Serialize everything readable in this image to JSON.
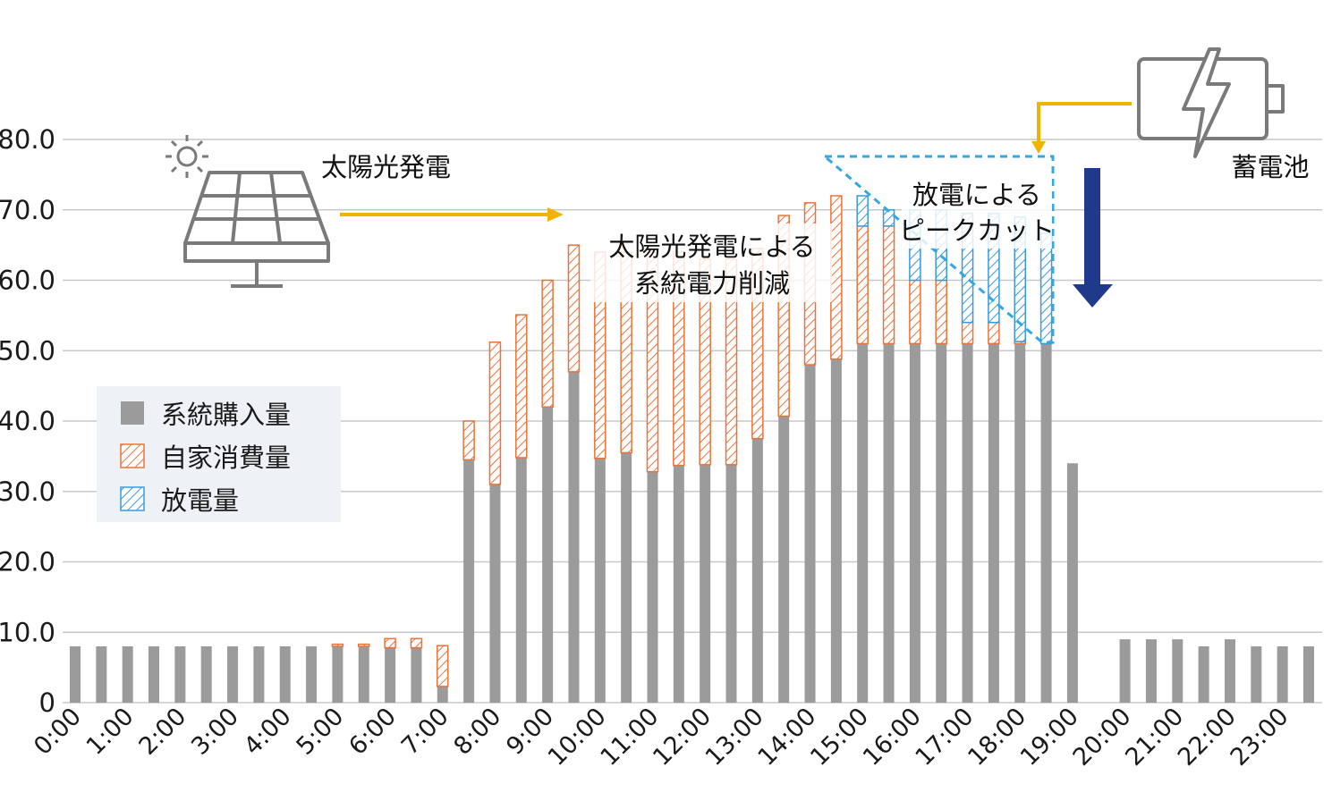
{
  "chart_data": {
    "type": "bar",
    "stacked": true,
    "categories": [
      "0:00",
      "0:30",
      "1:00",
      "1:30",
      "2:00",
      "2:30",
      "3:00",
      "3:30",
      "4:00",
      "4:30",
      "5:00",
      "5:30",
      "6:00",
      "6:30",
      "7:00",
      "7:30",
      "8:00",
      "8:30",
      "9:00",
      "9:30",
      "10:00",
      "10:30",
      "11:00",
      "11:30",
      "12:00",
      "12:30",
      "13:00",
      "13:30",
      "14:00",
      "14:30",
      "15:00",
      "15:30",
      "16:00",
      "16:30",
      "17:00",
      "17:30",
      "18:00",
      "18:30",
      "19:00",
      "19:30",
      "20:00",
      "20:30",
      "21:00",
      "21:30",
      "22:00",
      "22:30",
      "23:00",
      "23:30"
    ],
    "x_tick_labels": [
      "0:00",
      "1:00",
      "2:00",
      "3:00",
      "4:00",
      "5:00",
      "6:00",
      "7:00",
      "8:00",
      "9:00",
      "10:00",
      "11:00",
      "12:00",
      "13:00",
      "14:00",
      "15:00",
      "16:00",
      "17:00",
      "18:00",
      "19:00",
      "20:00",
      "21:00",
      "22:00",
      "23:00"
    ],
    "y_tick_labels": [
      "0",
      "10.0",
      "20.0",
      "30.0",
      "40.0",
      "50.0",
      "60.0",
      "70.0",
      "80.0"
    ],
    "ylim": [
      0,
      80
    ],
    "grid": true,
    "legend_position": "middle-left",
    "series": [
      {
        "name": "系統購入量",
        "color": "#9b9b9b",
        "pattern": "solid",
        "values": [
          8,
          8,
          8,
          8,
          8,
          8,
          8,
          8,
          8,
          8,
          8,
          8,
          7.8,
          7.8,
          2.3,
          34.5,
          31,
          34.8,
          42,
          47,
          34.7,
          35.5,
          32.8,
          33.7,
          33.8,
          33.8,
          37.5,
          40.7,
          48,
          48.8,
          51,
          51,
          51,
          51,
          51,
          51,
          51,
          51,
          34,
          null,
          9,
          9,
          9,
          8,
          9,
          8,
          8,
          8
        ]
      },
      {
        "name": "自家消費量",
        "color": "#e8743b",
        "pattern": "hatch",
        "values": [
          0,
          0,
          0,
          0,
          0,
          0,
          0,
          0,
          0,
          0,
          0.3,
          0.3,
          1.3,
          1.3,
          5.8,
          5.5,
          20.2,
          20.3,
          18,
          18,
          29.3,
          28.5,
          31.2,
          30.3,
          29.2,
          29.2,
          27,
          28.5,
          23,
          23.2,
          16.7,
          16.7,
          9,
          9,
          3,
          3,
          0.3,
          0,
          0,
          null,
          0,
          0,
          0,
          0,
          0,
          0,
          0,
          0
        ]
      },
      {
        "name": "放電量",
        "color": "#3a9ad9",
        "pattern": "hatch",
        "values": [
          0,
          0,
          0,
          0,
          0,
          0,
          0,
          0,
          0,
          0,
          0,
          0,
          0,
          0,
          0,
          0,
          0,
          0,
          0,
          0,
          0,
          0,
          0,
          0,
          0,
          0,
          0,
          0,
          0,
          0,
          4.3,
          2.3,
          10,
          10,
          15.5,
          15.5,
          17.7,
          15.7,
          0,
          null,
          0,
          0,
          0,
          0,
          0,
          0,
          0,
          0
        ]
      }
    ]
  },
  "annotations": {
    "solar_label": "太陽光発電",
    "solar_reduction_line1": "太陽光発電による",
    "solar_reduction_line2": "系統電力削減",
    "peak_cut_line1": "放電による",
    "peak_cut_line2": "ピークカット",
    "battery_label": "蓄電池"
  },
  "colors": {
    "grid": "#c8c8c8",
    "callout_arrow": "#f0b400",
    "peak_cut_dashed": "#33a8e0",
    "down_arrow": "#1f3a8a",
    "icon_stroke": "#7a7a7a",
    "legend_bg": "#eef1f5"
  },
  "icons": [
    "sun-icon",
    "solar-panel-icon",
    "battery-icon",
    "down-arrow"
  ]
}
